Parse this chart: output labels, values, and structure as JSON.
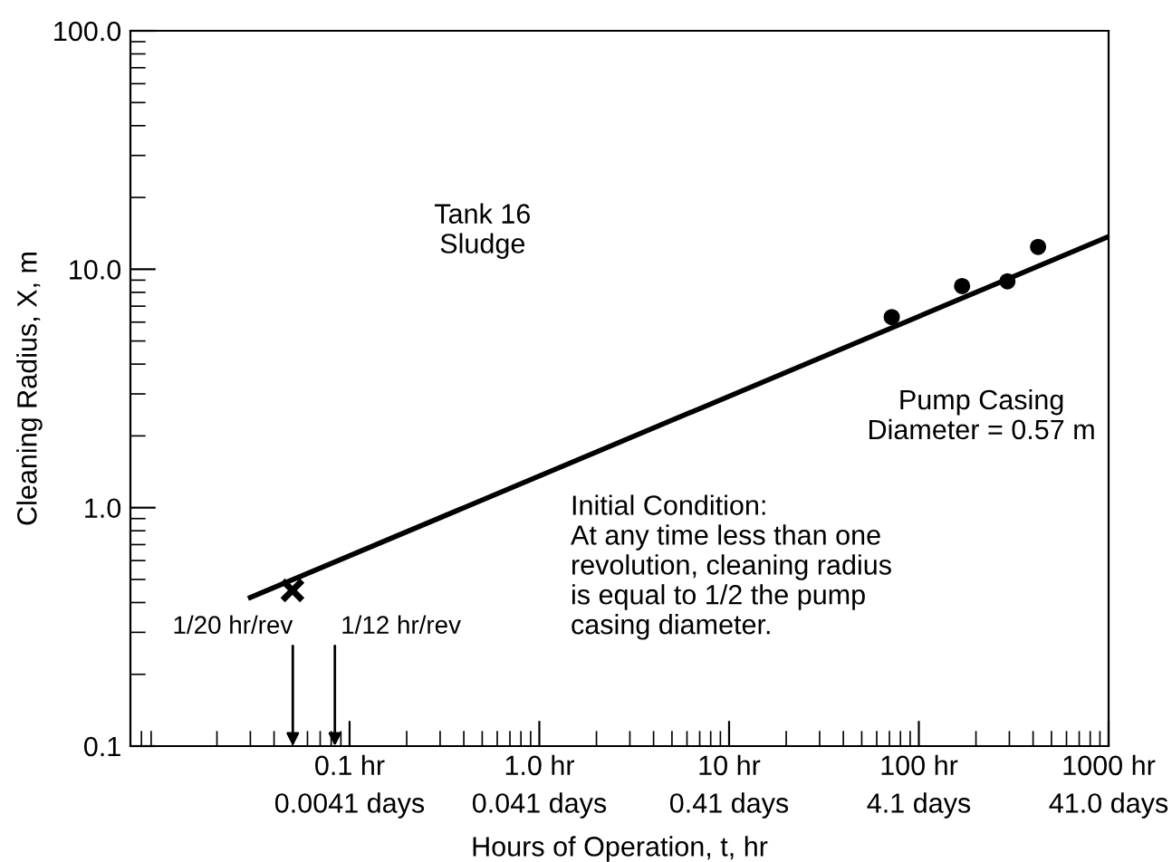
{
  "chart_data": {
    "type": "scatter",
    "log": "xy",
    "xlabel": "Hours of Operation, t, hr",
    "ylabel": "Cleaning Radius, X, m",
    "xlim": [
      0.007,
      1000
    ],
    "ylim": [
      0.1,
      100
    ],
    "xticks": [
      {
        "value": 0.1,
        "label": "0.1 hr"
      },
      {
        "value": 1,
        "label": "1.0 hr"
      },
      {
        "value": 10,
        "label": "10 hr"
      },
      {
        "value": 100,
        "label": "100 hr"
      },
      {
        "value": 1000,
        "label": "1000 hr"
      }
    ],
    "yticks": [
      0.1,
      {
        "value": 1,
        "label": "1.0"
      },
      {
        "value": 10,
        "label": "10.0"
      },
      {
        "value": 100,
        "label": "100.0"
      }
    ],
    "grid": false,
    "series": [
      {
        "marker": "circle",
        "color": "#000000",
        "x": [
          72,
          169,
          293,
          425
        ],
        "values": [
          6.3,
          8.5,
          8.9,
          12.4
        ]
      },
      {
        "type": "line",
        "line_style": "solid",
        "color": "#000000",
        "x": [
          0.03,
          1000
        ],
        "values": [
          0.42,
          13.7
        ]
      },
      {
        "type": "scatter",
        "marker": "cross",
        "color": "#000000",
        "x": [
          0.05
        ],
        "values": [
          0.45
        ]
      }
    ],
    "annotations": [
      "Tank 16\nSludge",
      "Pump Casing\nDiameter = 0.57 m",
      "Initial Condition:\nAt any time less than one\nrevolution, cleaning radius\nis equal to 1/2 the pump\ncasing diameter.",
      "1/20 hr/rev",
      "1/12 hr/rev",
      "0.0041 days",
      "0.041 days",
      "0.41 days",
      "4.1 days",
      "41.0 days"
    ]
  }
}
